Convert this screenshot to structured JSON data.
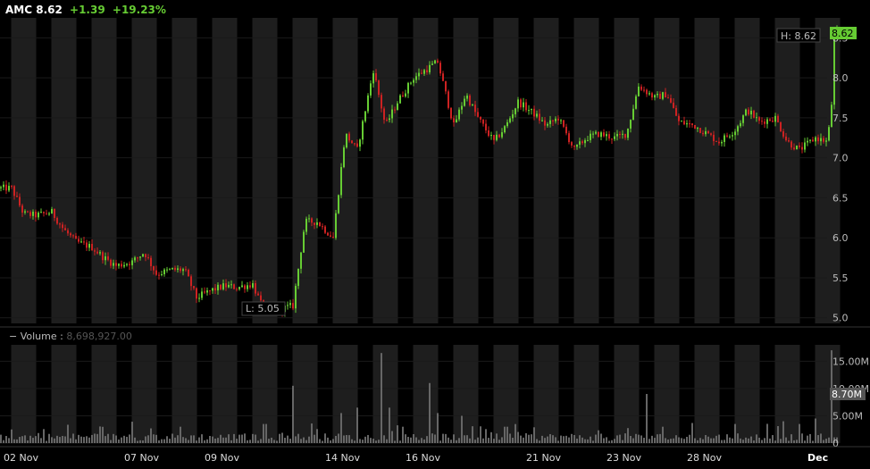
{
  "header": {
    "symbol": "AMC",
    "last": "8.62",
    "change": "+1.39",
    "change_pct": "+19.23%"
  },
  "volume_header": {
    "label": "Volume",
    "value": "8,698,927.00"
  },
  "markers": {
    "high_label": "H: 8.62",
    "low_label": "L: 5.05",
    "last_price_badge": "8.62",
    "last_volume_badge": "8.70M"
  },
  "colors": {
    "up": "#66cc33",
    "down": "#cc2222",
    "volume": "#666666",
    "session_band": "#1e1e1e"
  },
  "chart_data": [
    {
      "type": "candlestick",
      "title": "AMC",
      "ylim": [
        4.93,
        8.75
      ],
      "yticks": [
        "5.0",
        "5.5",
        "6.0",
        "6.5",
        "7.0",
        "7.5",
        "8.0",
        "8.5"
      ],
      "ytick_values": [
        5.0,
        5.5,
        6.0,
        6.5,
        7.0,
        7.5,
        8.0,
        8.5
      ],
      "xticks": [
        "02 Nov",
        "07 Nov",
        "09 Nov",
        "14 Nov",
        "16 Nov",
        "21 Nov",
        "23 Nov",
        "28 Nov",
        "Dec"
      ],
      "session_count": 21,
      "close_path": [
        [
          0.0,
          6.62
        ],
        [
          0.3,
          6.3
        ],
        [
          0.6,
          6.28
        ],
        [
          1.0,
          6.32
        ],
        [
          1.3,
          6.1
        ],
        [
          1.6,
          5.95
        ],
        [
          2.0,
          5.88
        ],
        [
          2.3,
          5.75
        ],
        [
          2.6,
          5.65
        ],
        [
          3.0,
          5.7
        ],
        [
          3.3,
          5.82
        ],
        [
          3.6,
          5.55
        ],
        [
          4.0,
          5.6
        ],
        [
          4.3,
          5.6
        ],
        [
          4.6,
          5.25
        ],
        [
          5.0,
          5.35
        ],
        [
          5.3,
          5.4
        ],
        [
          5.6,
          5.38
        ],
        [
          6.0,
          5.42
        ],
        [
          6.3,
          5.05
        ],
        [
          6.6,
          5.1
        ],
        [
          7.0,
          5.15
        ],
        [
          7.3,
          6.2
        ],
        [
          7.6,
          6.2
        ],
        [
          8.0,
          6.0
        ],
        [
          8.3,
          7.3
        ],
        [
          8.6,
          7.1
        ],
        [
          9.0,
          8.1
        ],
        [
          9.3,
          7.4
        ],
        [
          9.6,
          7.7
        ],
        [
          10.0,
          8.0
        ],
        [
          10.3,
          8.1
        ],
        [
          10.6,
          8.2
        ],
        [
          11.0,
          7.4
        ],
        [
          11.3,
          7.8
        ],
        [
          11.6,
          7.5
        ],
        [
          12.0,
          7.2
        ],
        [
          12.3,
          7.4
        ],
        [
          12.6,
          7.7
        ],
        [
          13.0,
          7.55
        ],
        [
          13.3,
          7.4
        ],
        [
          13.6,
          7.5
        ],
        [
          14.0,
          7.1
        ],
        [
          14.3,
          7.25
        ],
        [
          14.6,
          7.3
        ],
        [
          15.0,
          7.25
        ],
        [
          15.3,
          7.3
        ],
        [
          15.6,
          7.9
        ],
        [
          16.0,
          7.75
        ],
        [
          16.3,
          7.8
        ],
        [
          16.6,
          7.45
        ],
        [
          17.0,
          7.4
        ],
        [
          17.3,
          7.3
        ],
        [
          17.6,
          7.2
        ],
        [
          18.0,
          7.35
        ],
        [
          18.3,
          7.6
        ],
        [
          18.6,
          7.45
        ],
        [
          19.0,
          7.5
        ],
        [
          19.3,
          7.2
        ],
        [
          19.6,
          7.1
        ],
        [
          20.0,
          7.25
        ],
        [
          20.3,
          7.2
        ],
        [
          20.6,
          8.62
        ]
      ],
      "high": 8.62,
      "low": 5.05,
      "last": 8.62
    },
    {
      "type": "bar",
      "title": "Volume",
      "ylim": [
        0,
        18000000
      ],
      "yticks": [
        "0",
        "5.00M",
        "10.00M",
        "15.00M"
      ],
      "ytick_values": [
        0,
        5000000,
        10000000,
        15000000
      ],
      "spikes": [
        [
          0.0,
          2.5
        ],
        [
          4.2,
          3.0
        ],
        [
          6.3,
          3.5
        ],
        [
          7.0,
          10.5
        ],
        [
          8.2,
          5.5
        ],
        [
          8.6,
          6.5
        ],
        [
          9.2,
          16.5
        ],
        [
          9.4,
          6.5
        ],
        [
          10.4,
          11.0
        ],
        [
          10.6,
          5.5
        ],
        [
          11.2,
          5.0
        ],
        [
          12.3,
          3.0
        ],
        [
          15.8,
          9.0
        ],
        [
          16.2,
          3.0
        ],
        [
          18.0,
          3.5
        ],
        [
          19.2,
          4.0
        ],
        [
          19.6,
          3.5
        ],
        [
          20.0,
          4.5
        ],
        [
          20.4,
          17.0
        ],
        [
          20.6,
          8.7
        ]
      ],
      "last": 8700000
    }
  ]
}
